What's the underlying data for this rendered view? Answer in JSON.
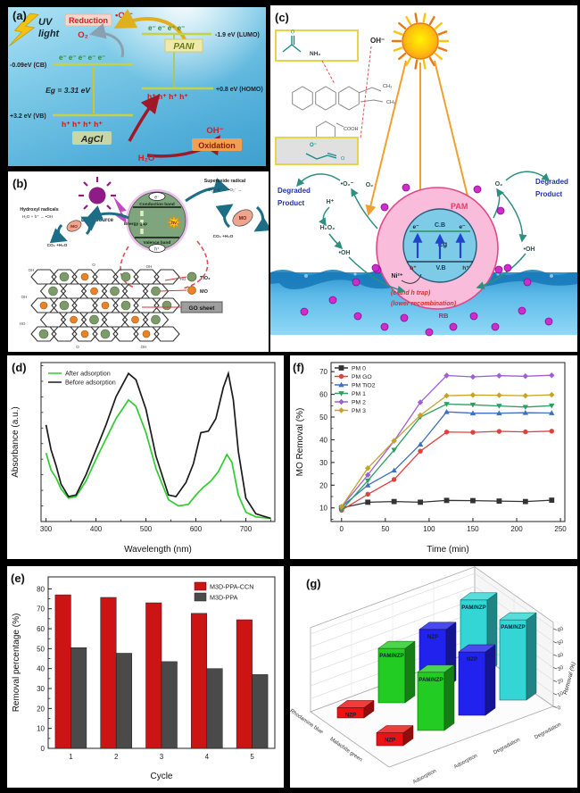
{
  "figure": {
    "background": "#000000"
  },
  "panels": {
    "a": {
      "label": "(a)",
      "uv1": "UV",
      "uv2": "light",
      "reduction": "Reduction",
      "superoxide": "•O₂⁻",
      "o2": "O₂",
      "cb_label": "-0.09eV (CB)",
      "eg_label": "Eg = 3.31 eV",
      "vb_label": "+3.2 eV (VB)",
      "electrons_cb": "e⁻  e⁻  e⁻  e⁻  e⁻",
      "electrons_lumo": "e⁻  e⁻  e⁻  e⁻",
      "holes_vb": "h⁺ h⁺ h⁺ h⁺",
      "holes_homo": "h⁺ h⁺ h⁺ h⁺",
      "agcl": "AgCl",
      "pani": "PANI",
      "lumo_label": "-1.9 eV (LUMO)",
      "homo_label": "+0.8 eV (HOMO)",
      "oh": "OH⁻",
      "oxidation": "Oxidation",
      "h2o": "H₂O"
    },
    "b": {
      "label": "(b)",
      "light_source": "Light source",
      "conduction_band": "Conduction band",
      "energy_gap": "Energy gap",
      "valence_band": "Valence band",
      "hv": "hν",
      "electron": "e⁻",
      "hole": "h⁺",
      "superoxide_title": "Superoxide radical",
      "superoxide_eq": "O₂ + e⁻ → •O₂⁻ →",
      "hydroxyl_title": "Hydroxyl radicals",
      "hydroxyl_eq": "H₂O + h⁺ → •OH",
      "mo": "MO",
      "co2": "CO₂ +H₂O",
      "legend": {
        "tio2": "TiO₂",
        "mo": "MO",
        "go_sheet": "GO sheet"
      },
      "edge_groups": [
        "OH",
        "O",
        "OH",
        "HO",
        "OH",
        "HO",
        "O",
        "OH"
      ]
    },
    "c": {
      "label": "(c)",
      "oh_minus": "OH⁻",
      "nh2": "NH₂",
      "ch3_a": "CH₃",
      "ch3_b": "CH₃",
      "cooh": "COOH",
      "o_top": "O",
      "o_minus": "O⁻",
      "o_right": "O",
      "pam": "PAM",
      "cb": "C.B",
      "eg": "Eg",
      "vb": "V.B",
      "electron": "e⁻",
      "hole": "h⁺",
      "ni": "Ni²⁺",
      "trap": "(e and h trap)",
      "recombination": "(lower recombination)",
      "rb": "RB",
      "degraded1": "Degraded",
      "degraded2": "Product",
      "o2": "O₂",
      "superoxide": "•O₂⁻",
      "h_plus": "H⁺",
      "h2o2": "H₂O₂",
      "oh_radical": "•OH"
    },
    "d": {
      "label": "(d)"
    },
    "e": {
      "label": "(e)"
    },
    "f": {
      "label": "(f)"
    },
    "g": {
      "label": "(g)"
    }
  },
  "chart_data": [
    {
      "panel": "d",
      "type": "line",
      "xlabel": "Wavelength (nm)",
      "ylabel": "Absorbance (a.u.)",
      "xlim": [
        290,
        758
      ],
      "ylim": [
        0,
        1.02
      ],
      "xticks": [
        300,
        400,
        500,
        600,
        700
      ],
      "legend_position": "top-left",
      "series": [
        {
          "name": "After adsorption",
          "color": "#2ecc2e",
          "x": [
            300,
            310,
            320,
            330,
            345,
            360,
            380,
            400,
            420,
            440,
            465,
            480,
            500,
            520,
            545,
            565,
            585,
            600,
            615,
            630,
            645,
            662,
            672,
            685,
            700,
            720,
            750
          ],
          "y": [
            0.44,
            0.33,
            0.28,
            0.21,
            0.15,
            0.16,
            0.26,
            0.4,
            0.53,
            0.66,
            0.78,
            0.74,
            0.57,
            0.34,
            0.14,
            0.1,
            0.11,
            0.17,
            0.22,
            0.26,
            0.32,
            0.43,
            0.38,
            0.17,
            0.06,
            0.03,
            0.02
          ]
        },
        {
          "name": "Before adsorption",
          "color": "#1a1a1a",
          "x": [
            300,
            310,
            320,
            330,
            345,
            360,
            380,
            400,
            420,
            440,
            465,
            480,
            500,
            520,
            545,
            560,
            580,
            595,
            610,
            625,
            640,
            655,
            665,
            675,
            685,
            700,
            720,
            750
          ],
          "y": [
            0.62,
            0.46,
            0.36,
            0.24,
            0.16,
            0.17,
            0.3,
            0.46,
            0.62,
            0.8,
            0.95,
            0.91,
            0.72,
            0.42,
            0.17,
            0.16,
            0.25,
            0.37,
            0.57,
            0.58,
            0.66,
            0.86,
            0.95,
            0.78,
            0.45,
            0.15,
            0.05,
            0.02
          ]
        }
      ]
    },
    {
      "panel": "f",
      "type": "line",
      "xlabel": "Time (min)",
      "ylabel": "MO Removal (%)",
      "xlim": [
        -12,
        255
      ],
      "ylim": [
        4,
        74
      ],
      "xticks": [
        0,
        50,
        100,
        150,
        200,
        250
      ],
      "yticks": [
        10,
        20,
        30,
        40,
        50,
        60,
        70
      ],
      "x": [
        0,
        30,
        60,
        90,
        120,
        150,
        180,
        210,
        240
      ],
      "legend_position": "top-left",
      "series": [
        {
          "name": "PM 0",
          "color": "#333333",
          "marker": "square",
          "y": [
            10,
            12.5,
            12.8,
            12.5,
            13.3,
            13.2,
            13.0,
            12.8,
            13.4
          ]
        },
        {
          "name": "PM GO",
          "color": "#e04040",
          "marker": "circle",
          "y": [
            9,
            16,
            22.5,
            35,
            43.4,
            43.3,
            43.7,
            43.5,
            43.8
          ]
        },
        {
          "name": "PM TiO2",
          "color": "#3f6fbf",
          "marker": "triUp",
          "y": [
            10.5,
            20,
            26.5,
            38,
            52.3,
            51.7,
            51.7,
            51.9,
            51.8
          ]
        },
        {
          "name": "PM 1",
          "color": "#2e9e60",
          "marker": "triDown",
          "y": [
            9,
            22,
            35.5,
            50,
            55.7,
            55.4,
            54.9,
            54.4,
            55.0
          ]
        },
        {
          "name": "PM 2",
          "color": "#9d5fd3",
          "marker": "diamond",
          "y": [
            10.5,
            24.5,
            39.5,
            56.5,
            68.3,
            67.7,
            68.2,
            68.0,
            68.4
          ]
        },
        {
          "name": "PM 3",
          "color": "#c8a227",
          "marker": "diamond",
          "y": [
            10.5,
            27.5,
            39.5,
            50.8,
            59.4,
            59.7,
            59.6,
            59.4,
            59.8
          ]
        }
      ]
    },
    {
      "panel": "e",
      "type": "bar",
      "xlabel": "Cycle",
      "ylabel": "Removal percentage (%)",
      "categories": [
        "1",
        "2",
        "3",
        "4",
        "5"
      ],
      "ylim": [
        0,
        86
      ],
      "yticks": [
        0,
        10,
        20,
        30,
        40,
        50,
        60,
        70,
        80
      ],
      "legend_position": "top-right",
      "series": [
        {
          "name": "M3D-PPA-CCN",
          "color": "#cc1414",
          "values": [
            77,
            75.7,
            73,
            67.7,
            64.5
          ]
        },
        {
          "name": "M3D-PPA",
          "color": "#4a4a4a",
          "values": [
            50.5,
            47.7,
            43.5,
            40,
            37
          ]
        }
      ]
    },
    {
      "panel": "g",
      "type": "bar3d",
      "zlabel": "Removal (%)",
      "zticks": [
        0,
        10,
        20,
        30,
        40,
        50,
        60
      ],
      "rows": [
        "Rhodamine blue",
        "Malachite green"
      ],
      "cols": [
        "Adsorption",
        "Adsorption",
        "Degradation",
        "Degradation"
      ],
      "bars": [
        {
          "row": 0,
          "col": 0,
          "label": "NZP",
          "color": "#ee1111",
          "value": 8
        },
        {
          "row": 0,
          "col": 1,
          "label": "PAM/NZP",
          "color": "#22cc22",
          "value": 42
        },
        {
          "row": 0,
          "col": 2,
          "label": "NZP",
          "color": "#2222ee",
          "value": 45
        },
        {
          "row": 0,
          "col": 3,
          "label": "PAM/NZP",
          "color": "#33d5d5",
          "value": 56
        },
        {
          "row": 1,
          "col": 0,
          "label": "NZP",
          "color": "#ee1111",
          "value": 10
        },
        {
          "row": 1,
          "col": 1,
          "label": "PAM/NZP",
          "color": "#22cc22",
          "value": 45
        },
        {
          "row": 1,
          "col": 2,
          "label": "NZP",
          "color": "#2222ee",
          "value": 49
        },
        {
          "row": 1,
          "col": 3,
          "label": "PAM/NZP",
          "color": "#33d5d5",
          "value": 62
        }
      ]
    }
  ]
}
